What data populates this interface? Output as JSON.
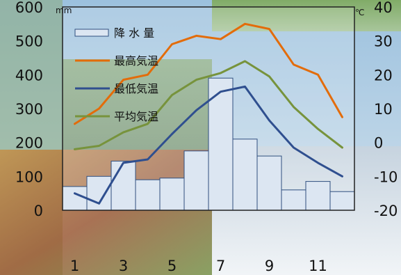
{
  "chart_data": {
    "type": "bar",
    "x": [
      1,
      2,
      3,
      4,
      5,
      6,
      7,
      8,
      9,
      10,
      11,
      12
    ],
    "x_tick_labels": [
      "1",
      "3",
      "5",
      "7",
      "9",
      "11"
    ],
    "y_left": {
      "unit": "mm",
      "ylim": [
        0,
        600
      ],
      "tick_labels": [
        "600",
        "500",
        "400",
        "300",
        "200",
        "100",
        "0"
      ]
    },
    "y_right": {
      "unit": "℃",
      "ylim": [
        -20,
        40
      ],
      "tick_labels": [
        "40",
        "30",
        "20",
        "10",
        "0",
        "-10",
        "-20"
      ]
    },
    "series": [
      {
        "name": "降 水 量",
        "type": "bar",
        "axis": "left",
        "values": [
          70,
          100,
          145,
          90,
          95,
          175,
          390,
          210,
          160,
          60,
          85,
          55
        ]
      },
      {
        "name": "最高気温",
        "type": "line",
        "axis": "right",
        "values": [
          5.5,
          10,
          18.5,
          20,
          29,
          31.5,
          30.5,
          35,
          33.5,
          23,
          20,
          7.5
        ]
      },
      {
        "name": "最低気温",
        "type": "line",
        "axis": "right",
        "values": [
          -15,
          -18,
          -6,
          -5,
          2.5,
          9.5,
          15,
          16.5,
          6.5,
          -1.5,
          -6,
          -10
        ]
      },
      {
        "name": "平均気温",
        "type": "line",
        "axis": "right",
        "values": [
          -2,
          -1,
          3,
          5.5,
          14,
          18.5,
          20.5,
          24,
          19.5,
          10.5,
          4,
          -1.5
        ]
      }
    ],
    "colors": {
      "bar_fill": "#dce6f2",
      "bar_stroke": "#2f4f7f",
      "high_temp": "#e36c0a",
      "low_temp": "#2f4f8f",
      "avg_temp": "#77933c",
      "plot_frame": "#222222",
      "sky": "#7fa8c9",
      "field": "#6b8f3a",
      "autumn": "#b06a2b",
      "tick_text": "#111111"
    },
    "legend_placement": "top-left inside plot",
    "background": "photo collage of seasonal landscapes",
    "grid": false
  }
}
